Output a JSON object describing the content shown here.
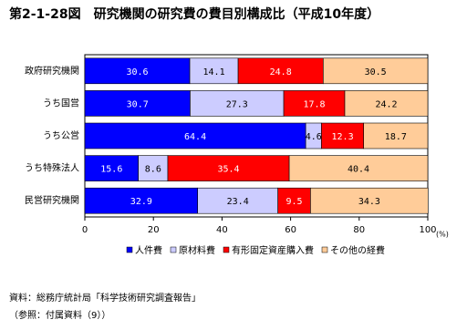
{
  "chart_data": {
    "type": "stacked-bar-horizontal",
    "title": "第2-1-28図　研究機関の研究費の費目別構成比（平成10年度）",
    "categories": [
      "政府研究機関",
      "うち国営",
      "うち公営",
      "うち特殊法人",
      "民営研究機関"
    ],
    "series": [
      {
        "name": "人件費",
        "color": "#0000ff",
        "values": [
          30.6,
          30.7,
          64.4,
          15.6,
          32.9
        ]
      },
      {
        "name": "原材料費",
        "color": "#ccccff",
        "values": [
          14.1,
          27.3,
          4.6,
          8.6,
          23.4
        ]
      },
      {
        "name": "有形固定資産購入費",
        "color": "#ff0000",
        "values": [
          24.8,
          17.8,
          12.3,
          35.4,
          9.5
        ]
      },
      {
        "name": "その他の経費",
        "color": "#ffcc99",
        "values": [
          30.5,
          24.2,
          18.7,
          40.4,
          34.3
        ]
      }
    ],
    "xlim": [
      0,
      100
    ],
    "xticks": [
      0,
      20,
      40,
      60,
      80,
      100
    ],
    "x_unit": "(%)",
    "legend": "bottom",
    "notes": [
      "資料：総務庁統計局「科学技術研究調査報告」",
      "（参照：付属資料（9））"
    ]
  }
}
